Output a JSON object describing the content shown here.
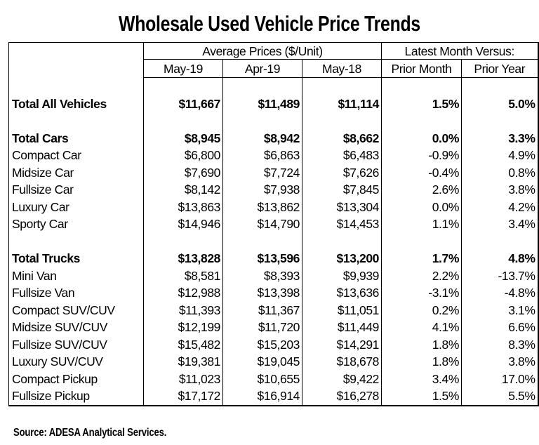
{
  "title": "Wholesale Used Vehicle Price Trends",
  "source": "Source: ADESA Analytical Services.",
  "header": {
    "group_prices": "Average Prices ($/Unit)",
    "group_change": "Latest Month Versus:",
    "columns": [
      "May-19",
      "Apr-19",
      "May-18",
      "Prior Month",
      "Prior Year"
    ]
  },
  "chart_data": {
    "type": "table",
    "title": "Wholesale Used Vehicle Price Trends",
    "columns": [
      "May-19",
      "Apr-19",
      "May-18",
      "Prior Month",
      "Prior Year"
    ],
    "rows": [
      {
        "label": "Total All Vehicles",
        "bold": true,
        "values": [
          "$11,667",
          "$11,489",
          "$11,114",
          "1.5%",
          "5.0%"
        ]
      },
      {
        "label": "Total Cars",
        "bold": true,
        "values": [
          "$8,945",
          "$8,942",
          "$8,662",
          "0.0%",
          "3.3%"
        ]
      },
      {
        "label": "Compact Car",
        "values": [
          "$6,800",
          "$6,863",
          "$6,483",
          "-0.9%",
          "4.9%"
        ]
      },
      {
        "label": "Midsize Car",
        "values": [
          "$7,690",
          "$7,724",
          "$7,626",
          "-0.4%",
          "0.8%"
        ]
      },
      {
        "label": "Fullsize Car",
        "values": [
          "$8,142",
          "$7,938",
          "$7,845",
          "2.6%",
          "3.8%"
        ]
      },
      {
        "label": "Luxury Car",
        "values": [
          "$13,863",
          "$13,862",
          "$13,304",
          "0.0%",
          "4.2%"
        ]
      },
      {
        "label": "Sporty Car",
        "values": [
          "$14,946",
          "$14,790",
          "$14,453",
          "1.1%",
          "3.4%"
        ]
      },
      {
        "label": "Total Trucks",
        "bold": true,
        "values": [
          "$13,828",
          "$13,596",
          "$13,200",
          "1.7%",
          "4.8%"
        ]
      },
      {
        "label": "Mini Van",
        "values": [
          "$8,581",
          "$8,393",
          "$9,939",
          "2.2%",
          "-13.7%"
        ]
      },
      {
        "label": "Fullsize Van",
        "values": [
          "$12,988",
          "$13,398",
          "$13,636",
          "-3.1%",
          "-4.8%"
        ]
      },
      {
        "label": "Compact SUV/CUV",
        "values": [
          "$11,393",
          "$11,367",
          "$11,051",
          "0.2%",
          "3.1%"
        ]
      },
      {
        "label": "Midsize SUV/CUV",
        "values": [
          "$12,199",
          "$11,720",
          "$11,449",
          "4.1%",
          "6.6%"
        ]
      },
      {
        "label": "Fullsize SUV/CUV",
        "values": [
          "$15,482",
          "$15,203",
          "$14,291",
          "1.8%",
          "8.3%"
        ]
      },
      {
        "label": "Luxury SUV/CUV",
        "values": [
          "$19,381",
          "$19,045",
          "$18,678",
          "1.8%",
          "3.8%"
        ]
      },
      {
        "label": "Compact Pickup",
        "values": [
          "$11,023",
          "$10,655",
          "$9,422",
          "3.4%",
          "17.0%"
        ]
      },
      {
        "label": "Fullsize Pickup",
        "values": [
          "$17,172",
          "$16,914",
          "$16,278",
          "1.5%",
          "5.5%"
        ]
      }
    ]
  }
}
